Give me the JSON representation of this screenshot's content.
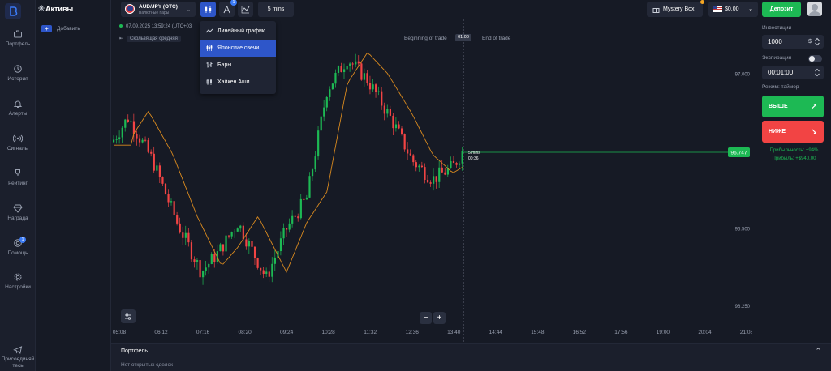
{
  "sidebar": {
    "items": [
      {
        "label": "Портфель",
        "icon": "briefcase-icon"
      },
      {
        "label": "История",
        "icon": "history-icon"
      },
      {
        "label": "Алерты",
        "icon": "alert-icon"
      },
      {
        "label": "Сигналы",
        "icon": "signal-icon"
      },
      {
        "label": "Рейтинг",
        "icon": "trophy-icon"
      },
      {
        "label": "Награда",
        "icon": "diamond-icon"
      },
      {
        "label": "Помощь",
        "icon": "help-icon",
        "badge": "1"
      },
      {
        "label": "Настройки",
        "icon": "settings-icon"
      }
    ],
    "bottom_item": {
      "line1": "Присоединяй",
      "line2": "тесь",
      "icon": "telegram-icon"
    }
  },
  "assets": {
    "title": "Активы",
    "add_label": "Добавить",
    "add_symbol": "+"
  },
  "topbar": {
    "asset_name": "AUD/JPY (OTC)",
    "asset_category": "Валютные пары",
    "tool_badge": "1",
    "timeframe": "5 mins",
    "mystery_box": "Mystery Box",
    "balance": "$0,00",
    "deposit": "Депозит"
  },
  "chart": {
    "datetime": "07.09.2025 13:59:24 (UTC+03",
    "indicator": "Скользящая средняя",
    "beginning_label": "Beginning of trade",
    "end_label": "End of trade",
    "trade_time": "01:00",
    "current_price": "96.747",
    "timer_label": "5 mins",
    "timer_value": "00:36",
    "zoom_minus": "−",
    "zoom_plus": "+",
    "colors": {
      "up": "#1db954",
      "down": "#f24444",
      "ma": "#d98a1f",
      "price_line": "#1db954"
    }
  },
  "chart_data": {
    "type": "candlestick",
    "x_ticks": [
      "05:08",
      "06:12",
      "07:16",
      "08:20",
      "09:24",
      "10:28",
      "11:32",
      "12:36",
      "13:40",
      "14:44",
      "15:48",
      "16:52",
      "17:56",
      "19:00",
      "20:04",
      "21:08"
    ],
    "y_ticks": [
      "97.000",
      "96.500",
      "96.250"
    ],
    "ylim": [
      96.2,
      97.15
    ],
    "current_value": 96.747
  },
  "chart_menu": {
    "items": [
      {
        "label": "Линейный график",
        "icon": "line-chart-icon",
        "active": false
      },
      {
        "label": "Японские свечи",
        "icon": "candles-icon",
        "active": true
      },
      {
        "label": "Бары",
        "icon": "bars-icon",
        "active": false
      },
      {
        "label": "Хайкен Аши",
        "icon": "heikin-ashi-icon",
        "active": false
      }
    ]
  },
  "trade_panel": {
    "investment_label": "Инвестиции",
    "investment_value": "1000",
    "currency": "$",
    "expiration_label": "Экспирация",
    "expiration_value": "00:01:00",
    "mode_label": "Режим: таймер",
    "up_label": "ВЫШЕ",
    "down_label": "НИЖЕ",
    "profitability": "Прибыльность: +94%",
    "profit": "Прибыль: +$940,00"
  },
  "portfolio": {
    "title": "Портфель",
    "empty": "Нет открытых сделок"
  }
}
